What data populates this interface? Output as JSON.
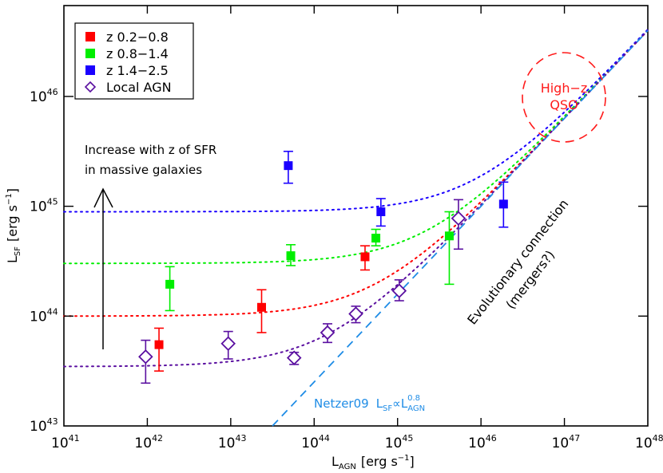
{
  "chart_data": {
    "type": "scatter",
    "title": "",
    "xlabel": "L_AGN [erg s^-1]",
    "ylabel": "L_SF [erg s^-1]",
    "xscale": "log",
    "yscale": "log",
    "xlim": [
      1e+41,
      1e+48
    ],
    "ylim": [
      1e+43,
      6.8e+46
    ],
    "x_ticks": [
      "10^41",
      "10^42",
      "10^43",
      "10^44",
      "10^45",
      "10^46",
      "10^47",
      "10^48"
    ],
    "y_ticks": [
      "10^43",
      "10^44",
      "10^45",
      "10^46"
    ],
    "grid": false,
    "legend_position": "upper left",
    "series": [
      {
        "name": "z 0.2-0.8",
        "color": "#ff0000",
        "marker": "filled-square",
        "points": [
          {
            "log_x": 42.14,
            "log_y": 43.74,
            "log_y_err": [
              43.5,
              43.89
            ]
          },
          {
            "log_x": 43.37,
            "log_y": 44.08,
            "log_y_err": [
              43.85,
              44.24
            ]
          },
          {
            "log_x": 44.61,
            "log_y": 44.54,
            "log_y_err": [
              44.42,
              44.64
            ]
          }
        ],
        "curve_plateau_log_y": 44.0
      },
      {
        "name": "z 0.8-1.4",
        "color": "#00ee00",
        "marker": "filled-square",
        "points": [
          {
            "log_x": 42.27,
            "log_y": 44.29,
            "log_y_err": [
              44.05,
              44.45
            ]
          },
          {
            "log_x": 43.72,
            "log_y": 44.55,
            "log_y_err": [
              44.46,
              44.65
            ]
          },
          {
            "log_x": 44.74,
            "log_y": 44.71,
            "log_y_err": [
              44.64,
              44.79
            ]
          },
          {
            "log_x": 45.62,
            "log_y": 44.73,
            "log_y_err": [
              44.29,
              44.95
            ]
          }
        ],
        "curve_plateau_log_y": 44.48
      },
      {
        "name": "z 1.4-2.5",
        "color": "#1a00ff",
        "marker": "filled-square",
        "points": [
          {
            "log_x": 43.69,
            "log_y": 45.37,
            "log_y_err": [
              45.21,
              45.5
            ]
          },
          {
            "log_x": 44.8,
            "log_y": 44.95,
            "log_y_err": [
              44.82,
              45.07
            ]
          },
          {
            "log_x": 46.27,
            "log_y": 45.02,
            "log_y_err": [
              44.81,
              45.22
            ]
          }
        ],
        "curve_plateau_log_y": 44.95
      },
      {
        "name": "Local AGN",
        "color": "#5a0fa0",
        "marker": "open-diamond",
        "points": [
          {
            "log_x": 41.98,
            "log_y": 43.63,
            "log_y_err": [
              43.39,
              43.78
            ]
          },
          {
            "log_x": 42.97,
            "log_y": 43.75,
            "log_y_err": [
              43.61,
              43.86
            ]
          },
          {
            "log_x": 43.76,
            "log_y": 43.62,
            "log_y_err": [
              43.56,
              43.67
            ]
          },
          {
            "log_x": 44.16,
            "log_y": 43.85,
            "log_y_err": [
              43.76,
              43.93
            ]
          },
          {
            "log_x": 44.5,
            "log_y": 44.02,
            "log_y_err": [
              43.94,
              44.09
            ]
          },
          {
            "log_x": 45.02,
            "log_y": 44.23,
            "log_y_err": [
              44.14,
              44.33
            ]
          },
          {
            "log_x": 45.73,
            "log_y": 44.89,
            "log_y_err": [
              44.61,
              45.06
            ]
          }
        ],
        "curve_plateau_log_y": 43.54
      }
    ],
    "reference_line": {
      "name": "Netzer09 L_SF ∝ L_AGN^0.8",
      "color": "#1e8ce6",
      "style": "dashed",
      "slope": 0.8,
      "log_x_start": 43.5,
      "log_y_start": 43.0
    },
    "annotations": [
      "Increase with z of SFR in massive galaxies",
      "Evolutionary connection (mergers?)",
      "High-z QSO",
      "Netzer09 L_SF ∝ L_AGN^0.8"
    ]
  },
  "axes": {
    "x_title_main": "L",
    "x_title_sub": "AGN",
    "x_title_units": "[erg s",
    "x_title_units_exp": "−1",
    "x_title_units_close": "]",
    "y_title_main": "L",
    "y_title_sub": "SF",
    "y_title_units": "[erg s",
    "y_title_units_exp": "−1",
    "y_title_units_close": "]",
    "x_ticks": [
      {
        "base": "10",
        "exp": "41"
      },
      {
        "base": "10",
        "exp": "42"
      },
      {
        "base": "10",
        "exp": "43"
      },
      {
        "base": "10",
        "exp": "44"
      },
      {
        "base": "10",
        "exp": "45"
      },
      {
        "base": "10",
        "exp": "46"
      },
      {
        "base": "10",
        "exp": "47"
      },
      {
        "base": "10",
        "exp": "48"
      }
    ],
    "y_ticks": [
      {
        "base": "10",
        "exp": "43"
      },
      {
        "base": "10",
        "exp": "44"
      },
      {
        "base": "10",
        "exp": "45"
      },
      {
        "base": "10",
        "exp": "46"
      }
    ]
  },
  "legend": {
    "items": [
      {
        "label": "z 0.2−0.8",
        "color": "#ff0000"
      },
      {
        "label": "z 0.8−1.4",
        "color": "#00ee00"
      },
      {
        "label": "z 1.4−2.5",
        "color": "#1a00ff"
      },
      {
        "label": "Local AGN",
        "color": "#5a0fa0"
      }
    ]
  },
  "annotations": {
    "sfr_line1": "Increase with z of SFR",
    "sfr_line2": "in massive galaxies",
    "evol_line1": "Evolutionary connection",
    "evol_line2": "(mergers?)",
    "qso_line1": "High−z",
    "qso_line2": "QSO",
    "netzer_label": "Netzer09",
    "netzer_L1": "L",
    "netzer_sub1": "SF",
    "netzer_prop": "∝",
    "netzer_L2": "L",
    "netzer_sub2": "AGN",
    "netzer_exp": "0.8"
  }
}
